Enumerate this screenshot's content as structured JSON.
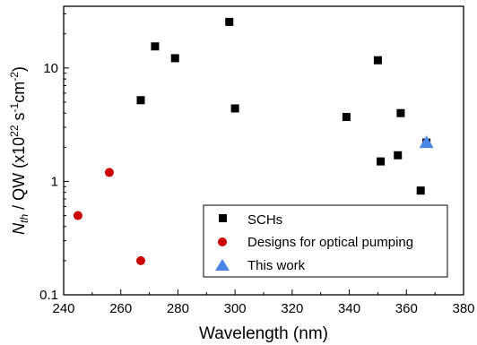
{
  "chart_data": {
    "type": "scatter",
    "xlabel": "Wavelength (nm)",
    "ylabel": {
      "main": "N",
      "sub": "th",
      "mid": " / QW (x10",
      "sup1": "22",
      "mid2": " s",
      "sup2": "-1",
      "mid3": "cm",
      "sup3": "-2",
      "end": ")"
    },
    "xlim": [
      240,
      380
    ],
    "ylim": [
      0.1,
      35
    ],
    "yscale": "log",
    "grid": false,
    "legend_position": "bottom-right",
    "xticks": [
      240,
      260,
      280,
      300,
      320,
      340,
      360,
      380
    ],
    "xtick_labels": [
      "240",
      "260",
      "280",
      "300",
      "320",
      "340",
      "360",
      "380"
    ],
    "yticks": [
      0.1,
      1,
      10
    ],
    "ytick_labels": [
      "0.1",
      "1",
      "10"
    ],
    "series": [
      {
        "name": "SCHs",
        "marker": "square",
        "color": "#000000",
        "points": [
          {
            "x": 267,
            "y": 5.2
          },
          {
            "x": 272,
            "y": 15.5
          },
          {
            "x": 279,
            "y": 12.2
          },
          {
            "x": 298,
            "y": 25.5
          },
          {
            "x": 300,
            "y": 4.4
          },
          {
            "x": 339,
            "y": 3.7
          },
          {
            "x": 350,
            "y": 11.7
          },
          {
            "x": 351,
            "y": 1.5
          },
          {
            "x": 357,
            "y": 1.7
          },
          {
            "x": 358,
            "y": 4.0
          },
          {
            "x": 365,
            "y": 0.83
          },
          {
            "x": 367,
            "y": 2.2
          }
        ]
      },
      {
        "name": "Designs for optical pumping",
        "marker": "circle",
        "color": "#cc0000",
        "points": [
          {
            "x": 245,
            "y": 0.5
          },
          {
            "x": 256,
            "y": 1.2
          },
          {
            "x": 267,
            "y": 0.2
          }
        ]
      },
      {
        "name": "This work",
        "marker": "triangle",
        "color": "#4a86e8",
        "points": [
          {
            "x": 367,
            "y": 2.2
          }
        ]
      }
    ]
  }
}
